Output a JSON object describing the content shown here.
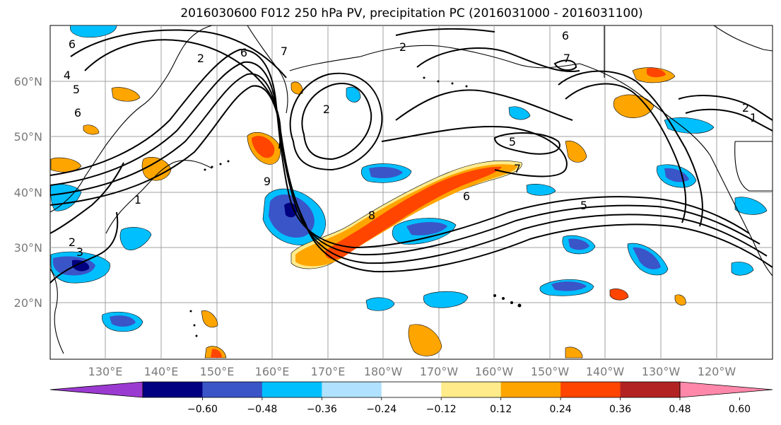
{
  "title": "2016030600 F012 250 hPa PV, precipitation PC (2016031000 - 2016031100)",
  "map": {
    "lat_labels": [
      "60°N",
      "50°N",
      "40°N",
      "30°N",
      "20°N"
    ],
    "lon_labels": [
      "130°E",
      "140°E",
      "150°E",
      "160°E",
      "170°E",
      "180°W",
      "170°W",
      "160°W",
      "150°W",
      "140°W",
      "130°W",
      "120°W"
    ],
    "contour_labels": [
      "6",
      "2",
      "6",
      "7",
      "4",
      "5",
      "6",
      "2",
      "2",
      "6",
      "7",
      "5",
      "7",
      "6",
      "5",
      "8",
      "2",
      "3",
      "2",
      "1",
      "1",
      "9"
    ]
  },
  "colorbar": {
    "tick_labels": [
      "−0.60",
      "−0.48",
      "−0.36",
      "−0.24",
      "−0.12",
      "0.12",
      "0.24",
      "0.36",
      "0.48",
      "0.60"
    ],
    "colors": [
      "#9b3ad0",
      "#000080",
      "#3a55c8",
      "#00bfff",
      "#b0e2ff",
      "#ffffff",
      "#ffeb8a",
      "#ffa500",
      "#ff4500",
      "#b22222",
      "#ff88aa"
    ]
  },
  "colors": {
    "neg_strong": "#3a55c8",
    "neg_mid": "#00bfff",
    "neg_dark": "#000080",
    "pos_mid": "#ffa500",
    "pos_strong": "#ff4500",
    "pos_light": "#ffeb8a"
  }
}
